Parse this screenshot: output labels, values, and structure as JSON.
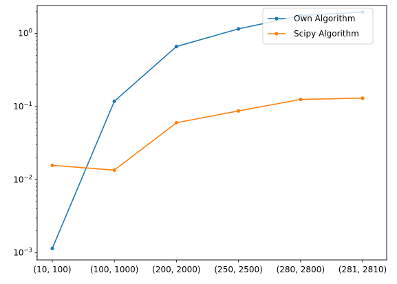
{
  "chart_data": {
    "type": "line",
    "title": "",
    "xlabel": "",
    "ylabel": "",
    "yscale": "log",
    "ylim": [
      0.0008,
      2.4
    ],
    "grid": false,
    "legend_position": "top-right",
    "categories": [
      "(10, 100)",
      "(100, 1000)",
      "(200, 2000)",
      "(250, 2500)",
      "(280, 2800)",
      "(281, 2810)"
    ],
    "y_ticks": [
      {
        "value": 0.001,
        "base": "10",
        "exp": "−3"
      },
      {
        "value": 0.01,
        "base": "10",
        "exp": "−2"
      },
      {
        "value": 0.1,
        "base": "10",
        "exp": "−1"
      },
      {
        "value": 1,
        "base": "10",
        "exp": "0"
      }
    ],
    "series": [
      {
        "name": "Own Algorithm",
        "color": "#1f77b4",
        "values": [
          0.00115,
          0.118,
          0.66,
          1.15,
          1.75,
          1.95
        ]
      },
      {
        "name": "Scipy Algorithm",
        "color": "#ff7f0e",
        "values": [
          0.0157,
          0.0135,
          0.06,
          0.087,
          0.125,
          0.13
        ]
      }
    ]
  }
}
